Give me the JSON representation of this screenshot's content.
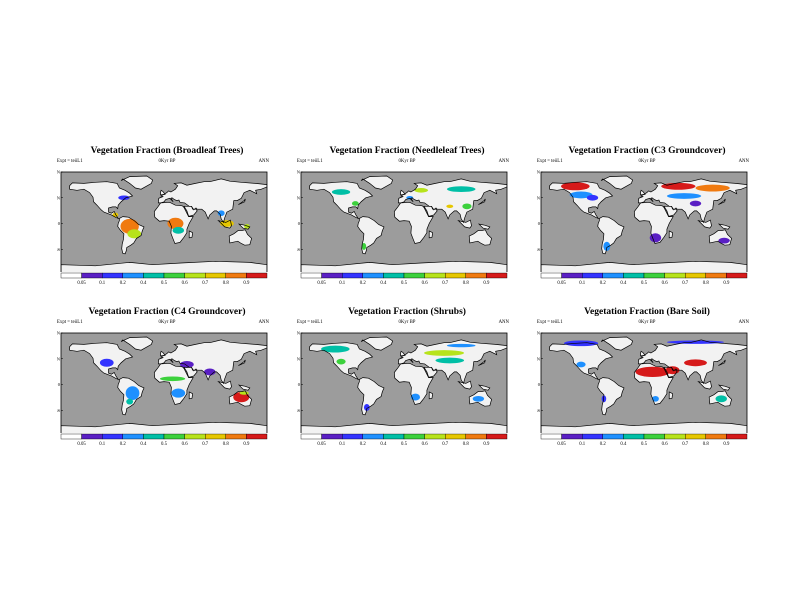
{
  "colors": {
    "ocean": "#9c9c9c",
    "land": "#f2f2f2",
    "coast": "#000000",
    "bins": [
      "#ffffff",
      "#5a1fc4",
      "#3333ff",
      "#1e90ff",
      "#00bfa6",
      "#3cd13c",
      "#b7e31b",
      "#e6c700",
      "#f07a10",
      "#d61a1a"
    ]
  },
  "chart_data": [
    {
      "type": "heatmap",
      "title": "Vegetation Fraction (Broadleaf Trees)",
      "expt": "Expt = teiiL1",
      "period": "0Kyr BP",
      "season": "ANN",
      "lat_ticks": [
        "90N",
        "45N",
        "0",
        "45S",
        "90S"
      ],
      "lon_ticks": [
        "180",
        "120W",
        "60W",
        "0",
        "60E",
        "120E",
        "180"
      ],
      "colorbar": [
        "0.05",
        "0.1",
        "0.2",
        "0.4",
        "0.5",
        "0.6",
        "0.7",
        "0.8",
        "0.9"
      ],
      "regions": [
        {
          "lon": -60,
          "lat": -5,
          "rx": 16,
          "ry": 13,
          "c": 8
        },
        {
          "lon": -52,
          "lat": -18,
          "rx": 12,
          "ry": 8,
          "c": 6
        },
        {
          "lon": 20,
          "lat": 0,
          "rx": 14,
          "ry": 10,
          "c": 8
        },
        {
          "lon": 25,
          "lat": -12,
          "rx": 10,
          "ry": 6,
          "c": 4
        },
        {
          "lon": -70,
          "lat": 45,
          "rx": 10,
          "ry": 4,
          "c": 2
        },
        {
          "lon": 110,
          "lat": 0,
          "rx": 12,
          "ry": 6,
          "c": 7
        },
        {
          "lon": 100,
          "lat": 18,
          "rx": 6,
          "ry": 5,
          "c": 3
        },
        {
          "lon": 145,
          "lat": -5,
          "rx": 5,
          "ry": 4,
          "c": 6
        },
        {
          "lon": -85,
          "lat": 15,
          "rx": 5,
          "ry": 4,
          "c": 7
        }
      ]
    },
    {
      "type": "heatmap",
      "title": "Vegetation Fraction (Needleleaf Trees)",
      "expt": "Expt = teiiL1",
      "period": "0Kyr BP",
      "season": "ANN",
      "lat_ticks": [
        "90N",
        "45N",
        "0",
        "45S",
        "90S"
      ],
      "lon_ticks": [
        "180",
        "120W",
        "60W",
        "0",
        "60E",
        "120E",
        "180"
      ],
      "colorbar": [
        "0.05",
        "0.1",
        "0.2",
        "0.4",
        "0.5",
        "0.6",
        "0.7",
        "0.8",
        "0.9"
      ],
      "regions": [
        {
          "lon": -110,
          "lat": 55,
          "rx": 16,
          "ry": 5,
          "c": 4
        },
        {
          "lon": -85,
          "lat": 35,
          "rx": 6,
          "ry": 4,
          "c": 5
        },
        {
          "lon": 30,
          "lat": 58,
          "rx": 12,
          "ry": 4,
          "c": 6
        },
        {
          "lon": 100,
          "lat": 60,
          "rx": 25,
          "ry": 5,
          "c": 4
        },
        {
          "lon": 110,
          "lat": 30,
          "rx": 8,
          "ry": 5,
          "c": 5
        },
        {
          "lon": 80,
          "lat": 30,
          "rx": 6,
          "ry": 3,
          "c": 7
        },
        {
          "lon": -70,
          "lat": -40,
          "rx": 4,
          "ry": 6,
          "c": 5
        },
        {
          "lon": 10,
          "lat": 45,
          "rx": 6,
          "ry": 3,
          "c": 3
        }
      ]
    },
    {
      "type": "heatmap",
      "title": "Vegetation Fraction (C3 Groundcover)",
      "expt": "Expt = teiiL1",
      "period": "0Kyr BP",
      "season": "ANN",
      "lat_ticks": [
        "90N",
        "45N",
        "0",
        "45S",
        "90S"
      ],
      "lon_ticks": [
        "180",
        "120W",
        "60W",
        "0",
        "60E",
        "120E",
        "180"
      ],
      "colorbar": [
        "0.05",
        "0.1",
        "0.2",
        "0.4",
        "0.5",
        "0.6",
        "0.7",
        "0.8",
        "0.9"
      ],
      "regions": [
        {
          "lon": -120,
          "lat": 65,
          "rx": 25,
          "ry": 7,
          "c": 9
        },
        {
          "lon": -110,
          "lat": 50,
          "rx": 20,
          "ry": 6,
          "c": 3
        },
        {
          "lon": -90,
          "lat": 45,
          "rx": 10,
          "ry": 5,
          "c": 2
        },
        {
          "lon": 60,
          "lat": 65,
          "rx": 30,
          "ry": 6,
          "c": 9
        },
        {
          "lon": 120,
          "lat": 62,
          "rx": 30,
          "ry": 6,
          "c": 8
        },
        {
          "lon": 70,
          "lat": 48,
          "rx": 30,
          "ry": 5,
          "c": 3
        },
        {
          "lon": 90,
          "lat": 35,
          "rx": 10,
          "ry": 5,
          "c": 1
        },
        {
          "lon": 20,
          "lat": -25,
          "rx": 10,
          "ry": 8,
          "c": 1
        },
        {
          "lon": -65,
          "lat": -40,
          "rx": 6,
          "ry": 8,
          "c": 3
        },
        {
          "lon": 140,
          "lat": -30,
          "rx": 10,
          "ry": 5,
          "c": 1
        }
      ]
    },
    {
      "type": "heatmap",
      "title": "Vegetation Fraction (C4 Groundcover)",
      "expt": "Expt = teiiL1",
      "period": "0Kyr BP",
      "season": "ANN",
      "lat_ticks": [
        "90N",
        "45N",
        "0",
        "45S",
        "90S"
      ],
      "lon_ticks": [
        "180",
        "120W",
        "60W",
        "0",
        "60E",
        "120E",
        "180"
      ],
      "colorbar": [
        "0.05",
        "0.1",
        "0.2",
        "0.4",
        "0.5",
        "0.6",
        "0.7",
        "0.8",
        "0.9"
      ],
      "regions": [
        {
          "lon": -100,
          "lat": 38,
          "rx": 12,
          "ry": 7,
          "c": 2
        },
        {
          "lon": -55,
          "lat": -15,
          "rx": 12,
          "ry": 12,
          "c": 3
        },
        {
          "lon": -60,
          "lat": -30,
          "rx": 6,
          "ry": 5,
          "c": 4
        },
        {
          "lon": 15,
          "lat": 10,
          "rx": 22,
          "ry": 4,
          "c": 5
        },
        {
          "lon": 25,
          "lat": -15,
          "rx": 12,
          "ry": 8,
          "c": 3
        },
        {
          "lon": 80,
          "lat": 22,
          "rx": 10,
          "ry": 6,
          "c": 1
        },
        {
          "lon": 135,
          "lat": -22,
          "rx": 14,
          "ry": 9,
          "c": 9
        },
        {
          "lon": 140,
          "lat": -15,
          "rx": 8,
          "ry": 3,
          "c": 6
        },
        {
          "lon": 40,
          "lat": 35,
          "rx": 12,
          "ry": 6,
          "c": 1
        }
      ]
    },
    {
      "type": "heatmap",
      "title": "Vegetation Fraction (Shrubs)",
      "expt": "Expt = teiiL1",
      "period": "0Kyr BP",
      "season": "ANN",
      "lat_ticks": [
        "90N",
        "45N",
        "0",
        "45S",
        "90S"
      ],
      "lon_ticks": [
        "180",
        "120W",
        "60W",
        "0",
        "60E",
        "120E",
        "180"
      ],
      "colorbar": [
        "0.05",
        "0.1",
        "0.2",
        "0.4",
        "0.5",
        "0.6",
        "0.7",
        "0.8",
        "0.9"
      ],
      "regions": [
        {
          "lon": -120,
          "lat": 62,
          "rx": 25,
          "ry": 6,
          "c": 4
        },
        {
          "lon": -110,
          "lat": 40,
          "rx": 8,
          "ry": 5,
          "c": 5
        },
        {
          "lon": 70,
          "lat": 55,
          "rx": 35,
          "ry": 5,
          "c": 6
        },
        {
          "lon": 80,
          "lat": 42,
          "rx": 25,
          "ry": 5,
          "c": 4
        },
        {
          "lon": 100,
          "lat": 68,
          "rx": 25,
          "ry": 3,
          "c": 3
        },
        {
          "lon": 20,
          "lat": -22,
          "rx": 8,
          "ry": 6,
          "c": 3
        },
        {
          "lon": -65,
          "lat": -40,
          "rx": 5,
          "ry": 6,
          "c": 2
        },
        {
          "lon": 130,
          "lat": -25,
          "rx": 10,
          "ry": 5,
          "c": 3
        }
      ]
    },
    {
      "type": "heatmap",
      "title": "Vegetation Fraction (Bare Soil)",
      "expt": "Expt = teiiL1",
      "period": "0Kyr BP",
      "season": "ANN",
      "lat_ticks": [
        "90N",
        "45N",
        "0",
        "45S",
        "90S"
      ],
      "lon_ticks": [
        "180",
        "120W",
        "60W",
        "0",
        "60E",
        "120E",
        "180"
      ],
      "colorbar": [
        "0.05",
        "0.1",
        "0.2",
        "0.4",
        "0.5",
        "0.6",
        "0.7",
        "0.8",
        "0.9"
      ],
      "regions": [
        {
          "lon": 15,
          "lat": 22,
          "rx": 30,
          "ry": 9,
          "c": 9
        },
        {
          "lon": 50,
          "lat": 25,
          "rx": 12,
          "ry": 7,
          "c": 9
        },
        {
          "lon": 90,
          "lat": 38,
          "rx": 20,
          "ry": 6,
          "c": 9
        },
        {
          "lon": -110,
          "lat": 72,
          "rx": 30,
          "ry": 5,
          "c": 2
        },
        {
          "lon": 90,
          "lat": 74,
          "rx": 50,
          "ry": 3,
          "c": 2
        },
        {
          "lon": -110,
          "lat": 35,
          "rx": 8,
          "ry": 5,
          "c": 3
        },
        {
          "lon": 135,
          "lat": -25,
          "rx": 10,
          "ry": 6,
          "c": 4
        },
        {
          "lon": -70,
          "lat": -25,
          "rx": 4,
          "ry": 6,
          "c": 2
        },
        {
          "lon": 20,
          "lat": -25,
          "rx": 6,
          "ry": 5,
          "c": 3
        }
      ]
    }
  ]
}
